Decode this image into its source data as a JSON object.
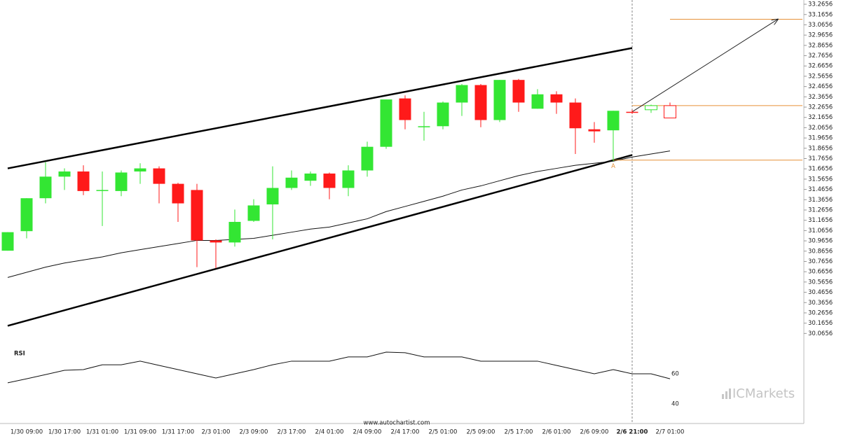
{
  "chart_data": [
    {
      "type": "candlestick",
      "categories": [
        null,
        "1/30 09:00",
        null,
        "1/30 17:00",
        null,
        "1/31 01:00",
        null,
        "1/31 09:00",
        null,
        "1/31 17:00",
        null,
        "2/3 01:00",
        null,
        "2/3 09:00",
        null,
        "2/3 17:00",
        null,
        "2/4 01:00",
        null,
        "2/4 09:00",
        null,
        "2/4 17:00",
        null,
        "2/5 01:00",
        null,
        "2/5 09:00",
        null,
        "2/5 17:00",
        null,
        "2/6 01:00",
        null,
        "2/6 09:00",
        null,
        "2/6 21:00",
        null,
        "2/7 01:00"
      ],
      "open": [
        30.87,
        31.06,
        31.38,
        31.59,
        31.64,
        31.46,
        31.45,
        31.64,
        31.67,
        31.52,
        31.46,
        30.97,
        30.95,
        31.16,
        31.32,
        31.48,
        31.55,
        31.62,
        31.48,
        31.65,
        31.88,
        32.35,
        32.08,
        32.08,
        32.31,
        32.48,
        32.14,
        32.53,
        32.25,
        32.39,
        32.31,
        32.05,
        32.04,
        32.22,
        32.24,
        32.28
      ],
      "high": [
        31.05,
        31.38,
        31.73,
        31.67,
        31.7,
        31.64,
        31.65,
        31.72,
        31.69,
        31.53,
        31.52,
        30.98,
        31.27,
        31.37,
        31.69,
        31.65,
        31.64,
        31.63,
        31.7,
        31.93,
        32.34,
        32.38,
        32.22,
        32.32,
        32.49,
        32.49,
        32.53,
        32.54,
        32.44,
        32.42,
        32.35,
        32.12,
        32.23,
        32.24,
        32.29,
        32.31
      ],
      "low": [
        30.87,
        30.99,
        31.33,
        31.46,
        31.41,
        31.11,
        31.4,
        31.52,
        31.33,
        31.15,
        30.71,
        30.7,
        30.91,
        31.15,
        30.98,
        31.46,
        31.5,
        31.37,
        31.4,
        31.59,
        31.86,
        32.05,
        31.94,
        32.05,
        32.18,
        32.07,
        32.12,
        32.22,
        32.25,
        32.2,
        31.81,
        31.92,
        31.74,
        32.2,
        32.21,
        32.16
      ],
      "close": [
        31.05,
        31.38,
        31.59,
        31.64,
        31.45,
        31.46,
        31.63,
        31.67,
        31.52,
        31.33,
        30.97,
        30.95,
        31.15,
        31.31,
        31.48,
        31.58,
        31.62,
        31.48,
        31.65,
        31.88,
        32.34,
        32.14,
        32.08,
        32.31,
        32.48,
        32.14,
        32.53,
        32.31,
        32.39,
        32.31,
        32.06,
        32.03,
        32.23,
        32.21,
        32.28,
        32.16
      ],
      "up_color": "#33e633",
      "down_color": "#ff1a1a",
      "outlined_candles": [
        34,
        35
      ],
      "ma": {
        "color": "#111111",
        "values": [
          30.61,
          30.66,
          30.71,
          30.75,
          30.78,
          30.81,
          30.85,
          30.88,
          30.91,
          30.94,
          30.97,
          30.97,
          30.98,
          30.99,
          31.02,
          31.05,
          31.08,
          31.1,
          31.14,
          31.18,
          31.25,
          31.3,
          31.35,
          31.4,
          31.46,
          31.5,
          31.55,
          31.6,
          31.64,
          31.67,
          31.7,
          31.72,
          31.74,
          31.78,
          31.81,
          31.84
        ]
      },
      "channel": [
        {
          "x": [
            0,
            33
          ],
          "values": [
            31.67,
            32.84
          ]
        },
        {
          "x": [
            0,
            33
          ],
          "values": [
            30.14,
            31.8
          ]
        }
      ],
      "forecast_arrow": {
        "x": [
          33,
          40.7
        ],
        "values": [
          32.22,
          33.12
        ]
      },
      "levels": [
        {
          "from": 35,
          "value": 33.12
        },
        {
          "from": 33,
          "value": 32.28
        },
        {
          "from": 32,
          "value": 31.75
        }
      ],
      "level_color": "#e69138",
      "marker": {
        "label": "A",
        "x": 32,
        "value": 31.74
      },
      "now_index": 33,
      "ylim": [
        30.0,
        33.3
      ],
      "yticks": [
        30.0656,
        30.1656,
        30.2656,
        30.3656,
        30.4656,
        30.5656,
        30.6656,
        30.7656,
        30.8656,
        30.9656,
        31.0656,
        31.1656,
        31.2656,
        31.3656,
        31.4656,
        31.5656,
        31.6656,
        31.7656,
        31.8656,
        31.9656,
        32.0656,
        32.1656,
        32.2656,
        32.3656,
        32.4656,
        32.5656,
        32.6656,
        32.7656,
        32.8656,
        32.9656,
        33.0656,
        33.1656,
        33.2656
      ],
      "source": "www.autochartist.com",
      "watermark": "ICMarkets"
    },
    {
      "type": "line",
      "title": "RSI",
      "color": "#111111",
      "values": [
        54.0,
        56.7,
        59.5,
        62.3,
        62.8,
        66.0,
        66.0,
        68.4,
        65.6,
        62.8,
        60.0,
        57.2,
        60.0,
        62.8,
        66.0,
        68.4,
        68.4,
        68.4,
        71.2,
        71.2,
        74.4,
        74.0,
        71.2,
        71.2,
        71.2,
        68.4,
        68.4,
        68.4,
        68.4,
        65.6,
        62.8,
        60.0,
        62.8,
        60.0,
        60.0,
        56.7
      ],
      "ylim": [
        30,
        80
      ],
      "yticks": [
        40,
        60
      ]
    }
  ]
}
